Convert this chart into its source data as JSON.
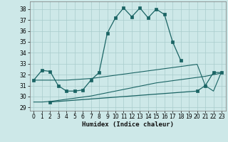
{
  "xlabel": "Humidex (Indice chaleur)",
  "background_color": "#cde8e8",
  "grid_color": "#a8cccc",
  "line_color": "#1a6464",
  "xlim": [
    -0.5,
    23.5
  ],
  "ylim": [
    28.7,
    38.7
  ],
  "yticks": [
    29,
    30,
    31,
    32,
    33,
    34,
    35,
    36,
    37,
    38
  ],
  "xticks": [
    0,
    1,
    2,
    3,
    4,
    5,
    6,
    7,
    8,
    9,
    10,
    11,
    12,
    13,
    14,
    15,
    16,
    17,
    18,
    19,
    20,
    21,
    22,
    23
  ],
  "curve1_x": [
    0,
    1,
    2,
    3,
    4,
    5,
    6,
    7,
    8,
    9,
    10,
    11,
    12,
    13,
    14,
    15,
    16,
    17,
    18
  ],
  "curve1_y": [
    31.5,
    32.4,
    32.3,
    31.0,
    30.5,
    30.5,
    30.6,
    31.5,
    32.2,
    35.8,
    37.2,
    38.1,
    37.3,
    38.1,
    37.2,
    38.0,
    37.5,
    35.0,
    33.3
  ],
  "curve2_x": [
    0,
    1,
    2,
    3,
    4,
    5,
    6,
    7,
    8,
    9,
    10,
    11,
    12,
    13,
    14,
    15,
    16,
    17,
    18,
    19,
    20,
    21,
    22,
    23
  ],
  "curve2_y": [
    31.5,
    31.5,
    31.5,
    31.5,
    31.5,
    31.55,
    31.6,
    31.65,
    31.75,
    31.85,
    31.95,
    32.05,
    32.15,
    32.25,
    32.35,
    32.45,
    32.55,
    32.65,
    32.75,
    32.85,
    32.95,
    31.0,
    30.5,
    32.3
  ],
  "curve3_x": [
    0,
    1,
    2,
    3,
    4,
    5,
    6,
    7,
    8,
    9,
    10,
    11,
    12,
    13,
    14,
    15,
    16,
    17,
    18,
    19,
    20,
    21,
    22,
    23
  ],
  "curve3_y": [
    29.5,
    29.5,
    29.55,
    29.65,
    29.75,
    29.85,
    29.95,
    30.05,
    30.2,
    30.35,
    30.5,
    30.65,
    30.8,
    30.95,
    31.1,
    31.25,
    31.35,
    31.45,
    31.55,
    31.65,
    31.75,
    31.85,
    32.0,
    32.15
  ],
  "curve4_x": [
    2,
    20,
    21,
    22,
    23
  ],
  "curve4_y": [
    29.5,
    30.5,
    31.0,
    32.2,
    32.2
  ]
}
